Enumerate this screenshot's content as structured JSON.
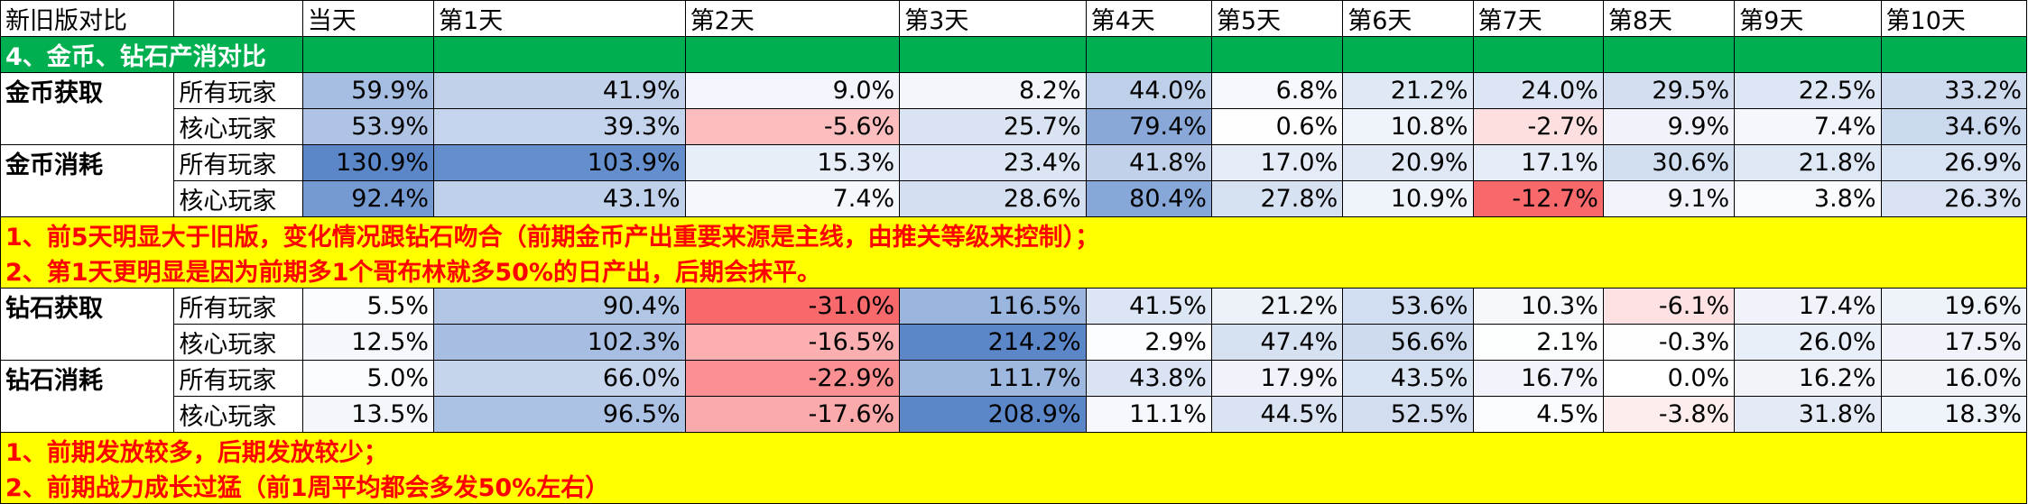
{
  "headers": [
    "新旧版对比",
    "",
    "当天",
    "第1天",
    "第2天",
    "第3天",
    "第4天",
    "第5天",
    "第6天",
    "第7天",
    "第8天",
    "第9天",
    "第10天"
  ],
  "section_title": "4、金币、钻石产消对比",
  "gold_rows": [
    {
      "group": "金币获取",
      "player": "所有玩家",
      "values": [
        "59.9%",
        "41.9%",
        "9.0%",
        "8.2%",
        "44.0%",
        "6.8%",
        "21.2%",
        "24.0%",
        "29.5%",
        "22.5%",
        "33.2%"
      ]
    },
    {
      "group": "",
      "player": "核心玩家",
      "values": [
        "53.9%",
        "39.3%",
        "-5.6%",
        "25.7%",
        "79.4%",
        "0.6%",
        "10.8%",
        "-2.7%",
        "9.9%",
        "7.4%",
        "34.6%"
      ]
    },
    {
      "group": "金币消耗",
      "player": "所有玩家",
      "values": [
        "130.9%",
        "103.9%",
        "15.3%",
        "23.4%",
        "41.8%",
        "17.0%",
        "20.9%",
        "17.1%",
        "30.6%",
        "21.8%",
        "26.9%"
      ]
    },
    {
      "group": "",
      "player": "核心玩家",
      "values": [
        "92.4%",
        "43.1%",
        "7.4%",
        "28.6%",
        "80.4%",
        "27.8%",
        "10.9%",
        "-12.7%",
        "9.1%",
        "3.8%",
        "26.3%"
      ]
    }
  ],
  "gold_notes": [
    "1、前5天明显大于旧版，变化情况跟钻石吻合（前期金币产出重要来源是主线，由推关等级来控制）；",
    "2、第1天更明显是因为前期多1个哥布林就多50%的日产出，后期会抹平。"
  ],
  "diamond_rows": [
    {
      "group": "钻石获取",
      "player": "所有玩家",
      "values": [
        "5.5%",
        "90.4%",
        "-31.0%",
        "116.5%",
        "41.5%",
        "21.2%",
        "53.6%",
        "10.3%",
        "-6.1%",
        "17.4%",
        "19.6%"
      ]
    },
    {
      "group": "",
      "player": "核心玩家",
      "values": [
        "12.5%",
        "102.3%",
        "-16.5%",
        "214.2%",
        "2.9%",
        "47.4%",
        "56.6%",
        "2.1%",
        "-0.3%",
        "26.0%",
        "17.5%"
      ]
    },
    {
      "group": "钻石消耗",
      "player": "所有玩家",
      "values": [
        "5.0%",
        "66.0%",
        "-22.9%",
        "111.7%",
        "43.8%",
        "17.9%",
        "43.5%",
        "16.7%",
        "0.0%",
        "16.2%",
        "16.0%"
      ]
    },
    {
      "group": "",
      "player": "核心玩家",
      "values": [
        "13.5%",
        "96.5%",
        "-17.6%",
        "208.9%",
        "11.1%",
        "44.5%",
        "52.5%",
        "4.5%",
        "-3.8%",
        "31.8%",
        "18.3%"
      ]
    }
  ],
  "diamond_notes": [
    "1、前期发放较多，后期发放较少；",
    "2、前期战力成长过猛（前1周平均都会多发50%左右）"
  ],
  "colors": {
    "section_green": "#00b050",
    "note_yellow": "#ffff00",
    "note_red": "#ff0000",
    "positive_max": "#5b87c9",
    "negative_max": "#f8696b",
    "neutral": "#ffffff"
  }
}
